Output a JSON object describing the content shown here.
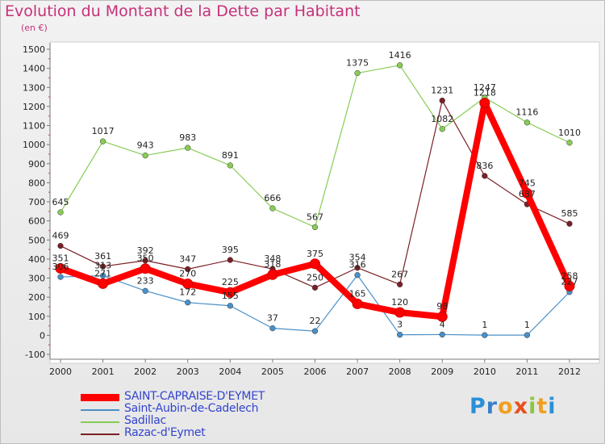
{
  "title": "Evolution du Montant de la Dette par Habitant",
  "subtitle": "(en €)",
  "logo": {
    "letters": [
      "P",
      "r",
      "o",
      "x",
      "i",
      "t",
      "i"
    ],
    "colors": [
      "#2a8fd6",
      "#3a7fc9",
      "#f0a020",
      "#e8501e",
      "#8cc63f",
      "#f0a020",
      "#2a8fd6"
    ]
  },
  "chart_data": {
    "type": "line",
    "title": "Evolution du Montant de la Dette par Habitant",
    "ylabel": "(en €)",
    "x": [
      "2000",
      "2001",
      "2002",
      "2003",
      "2004",
      "2005",
      "2006",
      "2007",
      "2008",
      "2009",
      "2010",
      "2011",
      "2012"
    ],
    "ylim": [
      -100,
      1500
    ],
    "yticks": [
      -100,
      0,
      100,
      200,
      300,
      400,
      500,
      600,
      700,
      800,
      900,
      1000,
      1100,
      1200,
      1300,
      1400,
      1500
    ],
    "grid": false,
    "legend": "bottom-left",
    "series": [
      {
        "name": "Sadillac",
        "color": "#88cc55",
        "values": [
          645,
          1017,
          943,
          983,
          891,
          666,
          567,
          1375,
          1416,
          1082,
          1247,
          1116,
          1010
        ]
      },
      {
        "name": "Razac-d'Eymet",
        "color": "#7a2026",
        "values": [
          469,
          361,
          392,
          347,
          395,
          348,
          250,
          354,
          267,
          1231,
          836,
          687,
          585
        ]
      },
      {
        "name": "Saint-Aubin-de-Cadelech",
        "color": "#4a90c8",
        "values": [
          306,
          313,
          233,
          172,
          155,
          37,
          22,
          316,
          3,
          4,
          1,
          1,
          227
        ]
      },
      {
        "name": "SAINT-CAPRAISE-D'EYMET",
        "color": "#ff0000",
        "values": [
          351,
          271,
          350,
          270,
          225,
          318,
          375,
          165,
          120,
          98,
          1218,
          745,
          258
        ]
      }
    ],
    "legend_order": [
      "SAINT-CAPRAISE-D'EYMET",
      "Saint-Aubin-de-Cadelech",
      "Sadillac",
      "Razac-d'Eymet"
    ]
  }
}
